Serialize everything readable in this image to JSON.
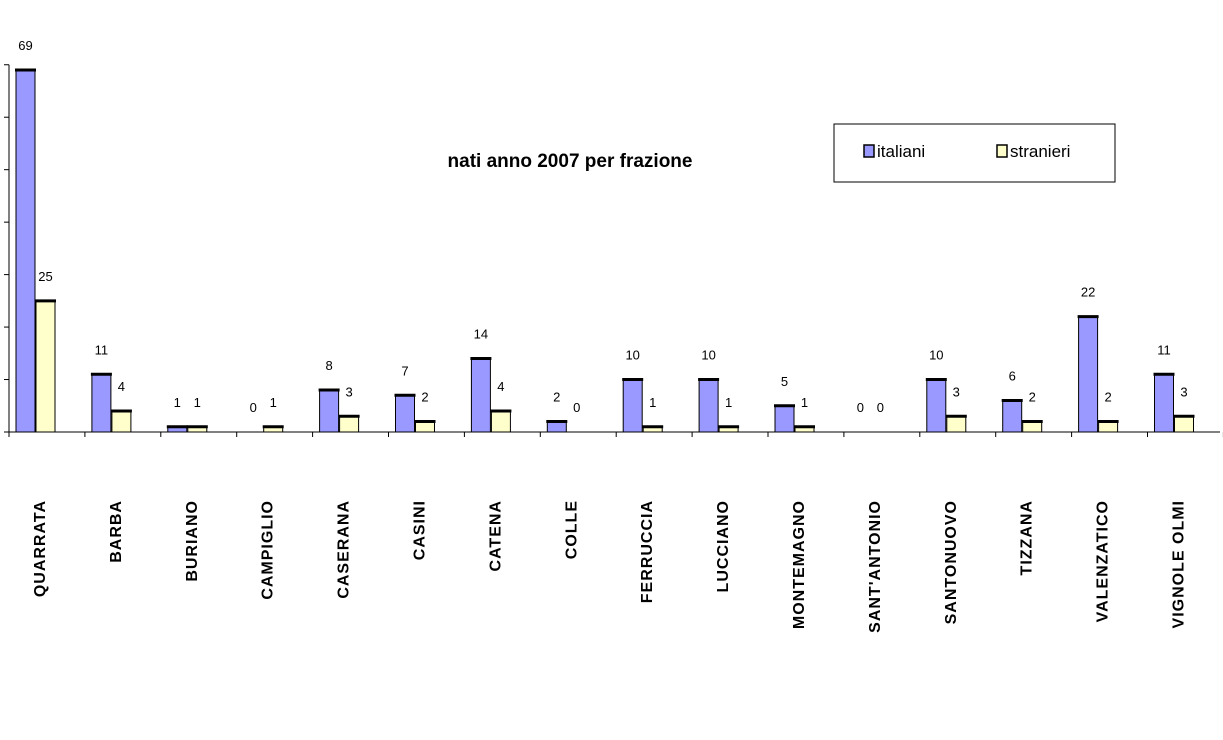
{
  "chart_data": {
    "type": "bar",
    "title": "nati anno 2007 per frazione",
    "xlabel": "",
    "ylabel": "",
    "ylim": [
      0,
      70
    ],
    "grid": false,
    "legend_position": "top-right",
    "categories": [
      "QUARRATA",
      "BARBA",
      "BURIANO",
      "CAMPIGLIO",
      "CASERANA",
      "CASINI",
      "CATENA",
      "COLLE",
      "FERRUCCIA",
      "LUCCIANO",
      "MONTEMAGNO",
      "SANT'ANTONIO",
      "SANTONUOVO",
      "TIZZANA",
      "VALENZATICO",
      "VIGNOLE OLMI"
    ],
    "series": [
      {
        "name": "italiani",
        "color": "#9999FF",
        "values": [
          69,
          11,
          1,
          0,
          8,
          7,
          14,
          2,
          10,
          10,
          5,
          0,
          10,
          6,
          22,
          11
        ]
      },
      {
        "name": "stranieri",
        "color": "#FFFFCC",
        "values": [
          25,
          4,
          1,
          1,
          3,
          2,
          4,
          0,
          1,
          1,
          1,
          0,
          3,
          2,
          2,
          3
        ]
      }
    ]
  }
}
